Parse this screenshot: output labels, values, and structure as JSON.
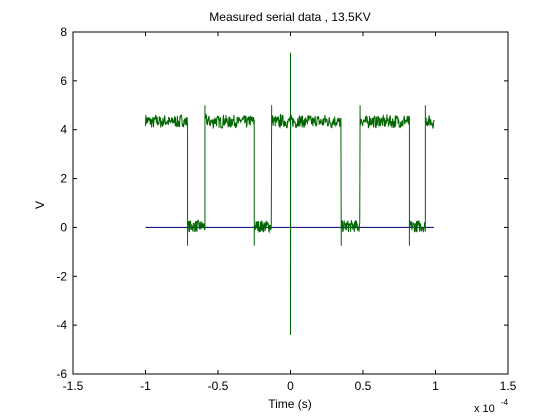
{
  "chart_data": {
    "type": "line",
    "title": "Measured serial data , 13.5KV",
    "xlabel": "Time (s)",
    "ylabel": "V",
    "x_exponent_label": "x 10",
    "x_exponent_power": "-4",
    "xlim": [
      -1.5,
      1.5
    ],
    "ylim": [
      -6,
      8
    ],
    "xticks": [
      -1.5,
      -1,
      -0.5,
      0,
      0.5,
      1,
      1.5
    ],
    "xtick_labels": [
      "-1.5",
      "-1",
      "-0.5",
      "0",
      "0.5",
      "1",
      "1.5"
    ],
    "yticks": [
      -6,
      -4,
      -2,
      0,
      2,
      4,
      6,
      8
    ],
    "ytick_labels": [
      "-6",
      "-4",
      "-2",
      "0",
      "2",
      "4",
      "6",
      "8"
    ],
    "grid": false,
    "series": [
      {
        "color": "#006600",
        "kind": "serial-signal",
        "high_level": 4.4,
        "low_level": 0.05,
        "noise_amplitude": 0.25,
        "segments": [
          {
            "x_start": -1.0,
            "x_end": -0.71,
            "level": "high"
          },
          {
            "x_start": -0.71,
            "x_end": -0.59,
            "level": "low"
          },
          {
            "x_start": -0.59,
            "x_end": -0.25,
            "level": "high"
          },
          {
            "x_start": -0.25,
            "x_end": -0.13,
            "level": "low"
          },
          {
            "x_start": -0.13,
            "x_end": 0.35,
            "level": "high"
          },
          {
            "x_start": 0.35,
            "x_end": 0.48,
            "level": "low"
          },
          {
            "x_start": 0.48,
            "x_end": 0.82,
            "level": "high"
          },
          {
            "x_start": 0.82,
            "x_end": 0.93,
            "level": "low"
          },
          {
            "x_start": 0.93,
            "x_end": 0.99,
            "level": "high"
          }
        ],
        "edge_undershoot": -0.75,
        "edge_overshoot": 5.0,
        "spike": {
          "x": 0.0,
          "max": 7.15,
          "min": -4.4
        }
      },
      {
        "color": "#000080",
        "kind": "baseline",
        "x": [
          -1.0,
          0.99
        ],
        "y": [
          0,
          0
        ]
      }
    ]
  }
}
